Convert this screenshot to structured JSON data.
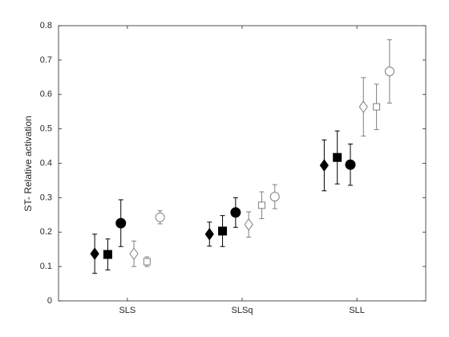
{
  "chart_data": {
    "type": "errorbar",
    "y_label": "ST- Relative activation",
    "categories": [
      "SLS",
      "SLSq",
      "SLL"
    ],
    "ylim": [
      0,
      0.8
    ],
    "yticks": [
      0,
      0.1,
      0.2,
      0.3,
      0.4,
      0.5,
      0.6,
      0.7,
      0.8
    ],
    "series": [
      {
        "marker": "diamond",
        "filled": true,
        "color": "#000000",
        "values": [
          0.137,
          0.194,
          0.394
        ],
        "errors": [
          0.057,
          0.035,
          0.074
        ]
      },
      {
        "marker": "square",
        "filled": true,
        "color": "#000000",
        "values": [
          0.135,
          0.203,
          0.417
        ],
        "errors": [
          0.045,
          0.045,
          0.077
        ]
      },
      {
        "marker": "circle",
        "filled": true,
        "color": "#000000",
        "values": [
          0.226,
          0.257,
          0.396
        ],
        "errors": [
          0.068,
          0.043,
          0.06
        ]
      },
      {
        "marker": "diamond",
        "filled": false,
        "color": "#808080",
        "values": [
          0.137,
          0.222,
          0.564
        ],
        "errors": [
          0.037,
          0.037,
          0.085
        ]
      },
      {
        "marker": "square",
        "filled": false,
        "color": "#808080",
        "values": [
          0.114,
          0.278,
          0.564
        ],
        "errors": [
          0.014,
          0.039,
          0.066
        ]
      },
      {
        "marker": "circle",
        "filled": false,
        "color": "#808080",
        "values": [
          0.243,
          0.303,
          0.667
        ],
        "errors": [
          0.019,
          0.035,
          0.092
        ]
      }
    ]
  }
}
